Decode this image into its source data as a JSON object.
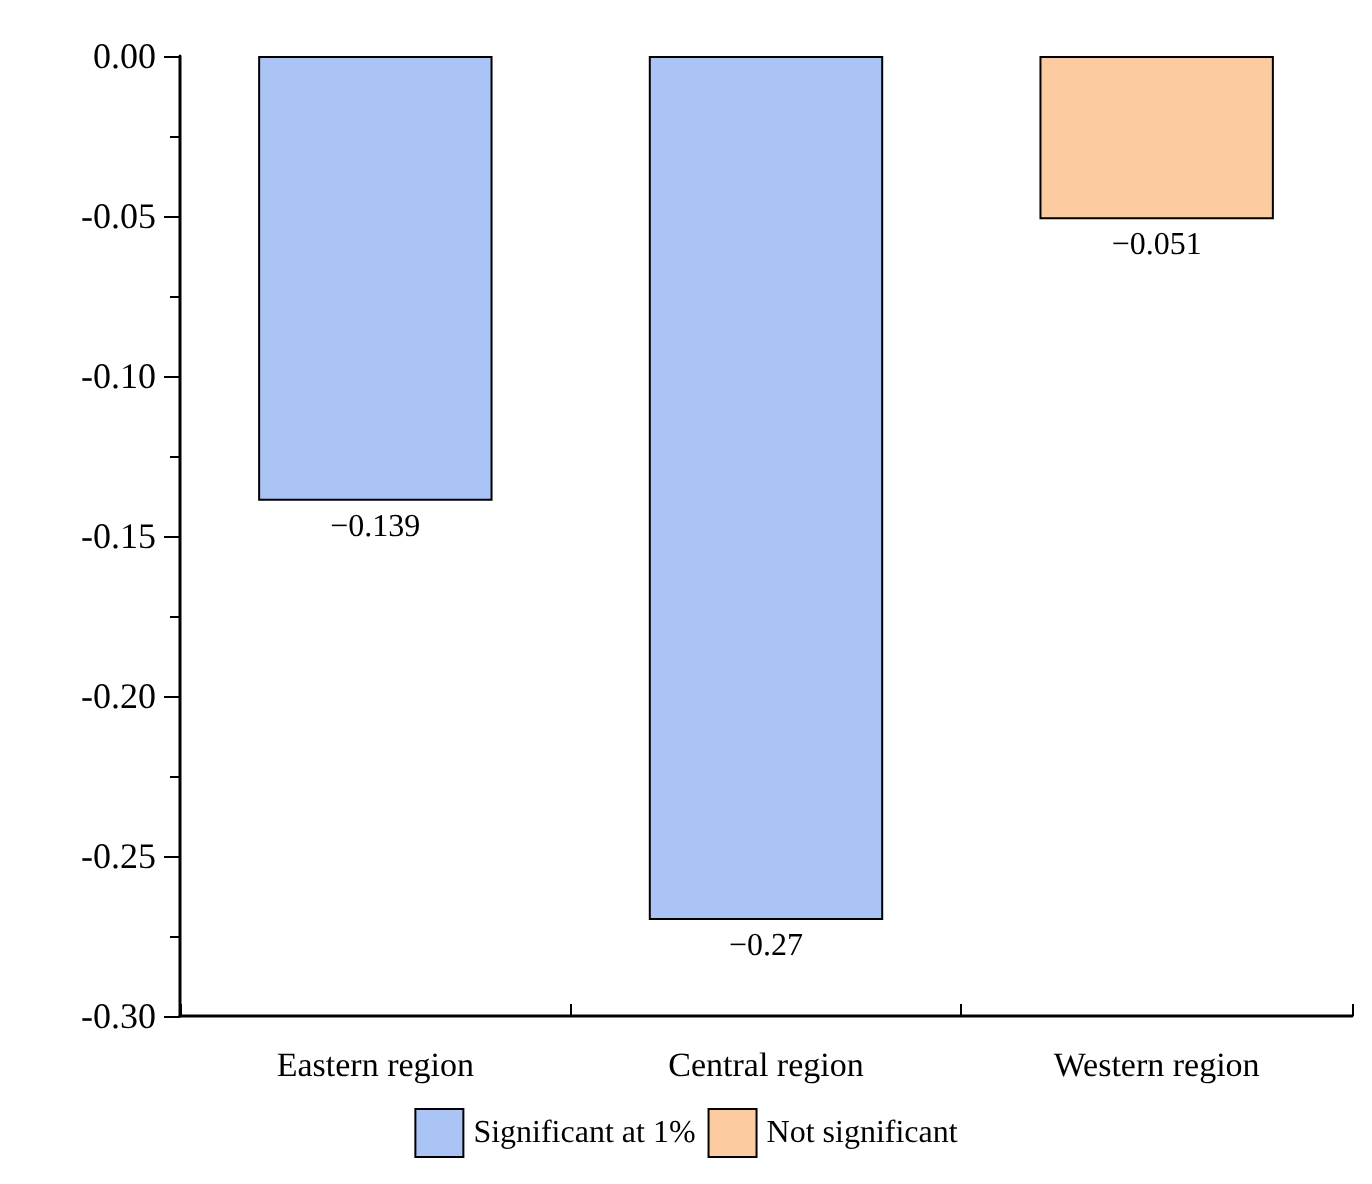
{
  "chart_data": {
    "type": "bar",
    "categories": [
      "Eastern region",
      "Central region",
      "Western region"
    ],
    "series": [
      {
        "name": "Significant at 1%",
        "color": "#a9c4f5",
        "values": [
          -0.139,
          -0.27,
          null
        ]
      },
      {
        "name": "Not significant",
        "color": "#fccca0",
        "values": [
          null,
          null,
          -0.051
        ]
      }
    ],
    "ylim": [
      -0.3,
      0
    ],
    "yticks": [
      {
        "value": 0,
        "label": "0.00"
      },
      -0.05,
      {
        "value": -0.1,
        "label": "-0.10"
      },
      -0.15,
      {
        "value": -0.2,
        "label": "-0.20"
      },
      -0.25,
      {
        "value": -0.3,
        "label": "-0.30"
      }
    ],
    "data_labels": true,
    "grid": false,
    "legend": "bottom"
  }
}
